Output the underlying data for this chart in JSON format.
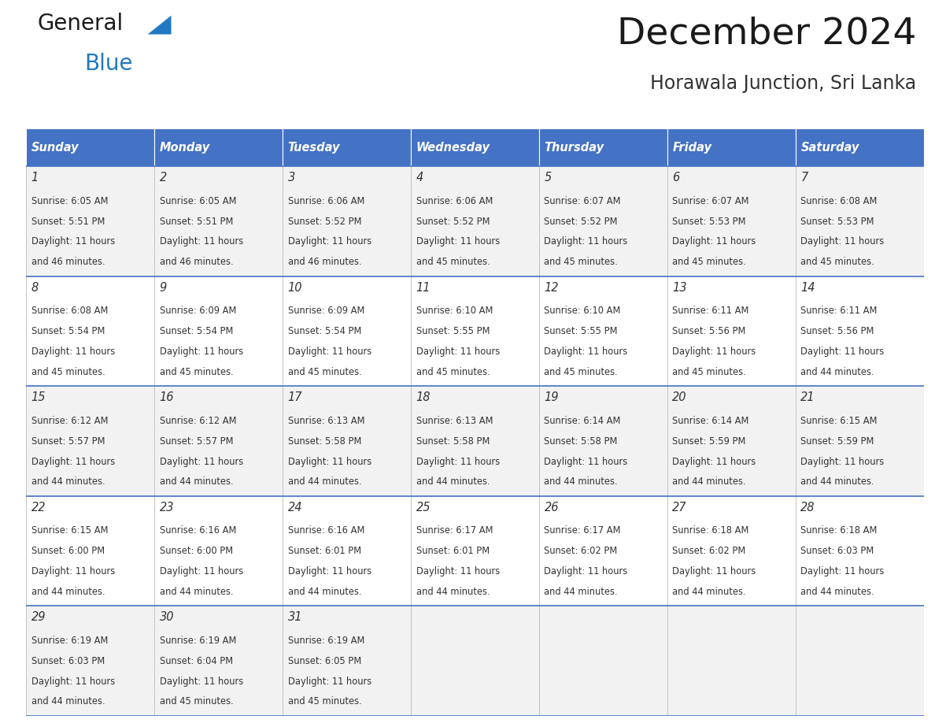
{
  "title": "December 2024",
  "subtitle": "Horawala Junction, Sri Lanka",
  "header_color": "#4472C4",
  "header_text_color": "#FFFFFF",
  "cell_bg_even": "#F2F2F2",
  "cell_bg_odd": "#FFFFFF",
  "grid_line_color": "#4472C4",
  "vert_line_color": "#AAAAAA",
  "day_headers": [
    "Sunday",
    "Monday",
    "Tuesday",
    "Wednesday",
    "Thursday",
    "Friday",
    "Saturday"
  ],
  "text_color": "#333333",
  "logo_color_general": "#1A1A1A",
  "logo_color_blue": "#2079C1",
  "logo_triangle_color": "#2079C1",
  "title_color": "#1A1A1A",
  "subtitle_color": "#333333",
  "days": [
    {
      "day": 1,
      "col": 0,
      "row": 0,
      "sunrise": "6:05 AM",
      "sunset": "5:51 PM",
      "daylight_mins": "46"
    },
    {
      "day": 2,
      "col": 1,
      "row": 0,
      "sunrise": "6:05 AM",
      "sunset": "5:51 PM",
      "daylight_mins": "46"
    },
    {
      "day": 3,
      "col": 2,
      "row": 0,
      "sunrise": "6:06 AM",
      "sunset": "5:52 PM",
      "daylight_mins": "46"
    },
    {
      "day": 4,
      "col": 3,
      "row": 0,
      "sunrise": "6:06 AM",
      "sunset": "5:52 PM",
      "daylight_mins": "45"
    },
    {
      "day": 5,
      "col": 4,
      "row": 0,
      "sunrise": "6:07 AM",
      "sunset": "5:52 PM",
      "daylight_mins": "45"
    },
    {
      "day": 6,
      "col": 5,
      "row": 0,
      "sunrise": "6:07 AM",
      "sunset": "5:53 PM",
      "daylight_mins": "45"
    },
    {
      "day": 7,
      "col": 6,
      "row": 0,
      "sunrise": "6:08 AM",
      "sunset": "5:53 PM",
      "daylight_mins": "45"
    },
    {
      "day": 8,
      "col": 0,
      "row": 1,
      "sunrise": "6:08 AM",
      "sunset": "5:54 PM",
      "daylight_mins": "45"
    },
    {
      "day": 9,
      "col": 1,
      "row": 1,
      "sunrise": "6:09 AM",
      "sunset": "5:54 PM",
      "daylight_mins": "45"
    },
    {
      "day": 10,
      "col": 2,
      "row": 1,
      "sunrise": "6:09 AM",
      "sunset": "5:54 PM",
      "daylight_mins": "45"
    },
    {
      "day": 11,
      "col": 3,
      "row": 1,
      "sunrise": "6:10 AM",
      "sunset": "5:55 PM",
      "daylight_mins": "45"
    },
    {
      "day": 12,
      "col": 4,
      "row": 1,
      "sunrise": "6:10 AM",
      "sunset": "5:55 PM",
      "daylight_mins": "45"
    },
    {
      "day": 13,
      "col": 5,
      "row": 1,
      "sunrise": "6:11 AM",
      "sunset": "5:56 PM",
      "daylight_mins": "45"
    },
    {
      "day": 14,
      "col": 6,
      "row": 1,
      "sunrise": "6:11 AM",
      "sunset": "5:56 PM",
      "daylight_mins": "44"
    },
    {
      "day": 15,
      "col": 0,
      "row": 2,
      "sunrise": "6:12 AM",
      "sunset": "5:57 PM",
      "daylight_mins": "44"
    },
    {
      "day": 16,
      "col": 1,
      "row": 2,
      "sunrise": "6:12 AM",
      "sunset": "5:57 PM",
      "daylight_mins": "44"
    },
    {
      "day": 17,
      "col": 2,
      "row": 2,
      "sunrise": "6:13 AM",
      "sunset": "5:58 PM",
      "daylight_mins": "44"
    },
    {
      "day": 18,
      "col": 3,
      "row": 2,
      "sunrise": "6:13 AM",
      "sunset": "5:58 PM",
      "daylight_mins": "44"
    },
    {
      "day": 19,
      "col": 4,
      "row": 2,
      "sunrise": "6:14 AM",
      "sunset": "5:58 PM",
      "daylight_mins": "44"
    },
    {
      "day": 20,
      "col": 5,
      "row": 2,
      "sunrise": "6:14 AM",
      "sunset": "5:59 PM",
      "daylight_mins": "44"
    },
    {
      "day": 21,
      "col": 6,
      "row": 2,
      "sunrise": "6:15 AM",
      "sunset": "5:59 PM",
      "daylight_mins": "44"
    },
    {
      "day": 22,
      "col": 0,
      "row": 3,
      "sunrise": "6:15 AM",
      "sunset": "6:00 PM",
      "daylight_mins": "44"
    },
    {
      "day": 23,
      "col": 1,
      "row": 3,
      "sunrise": "6:16 AM",
      "sunset": "6:00 PM",
      "daylight_mins": "44"
    },
    {
      "day": 24,
      "col": 2,
      "row": 3,
      "sunrise": "6:16 AM",
      "sunset": "6:01 PM",
      "daylight_mins": "44"
    },
    {
      "day": 25,
      "col": 3,
      "row": 3,
      "sunrise": "6:17 AM",
      "sunset": "6:01 PM",
      "daylight_mins": "44"
    },
    {
      "day": 26,
      "col": 4,
      "row": 3,
      "sunrise": "6:17 AM",
      "sunset": "6:02 PM",
      "daylight_mins": "44"
    },
    {
      "day": 27,
      "col": 5,
      "row": 3,
      "sunrise": "6:18 AM",
      "sunset": "6:02 PM",
      "daylight_mins": "44"
    },
    {
      "day": 28,
      "col": 6,
      "row": 3,
      "sunrise": "6:18 AM",
      "sunset": "6:03 PM",
      "daylight_mins": "44"
    },
    {
      "day": 29,
      "col": 0,
      "row": 4,
      "sunrise": "6:19 AM",
      "sunset": "6:03 PM",
      "daylight_mins": "44"
    },
    {
      "day": 30,
      "col": 1,
      "row": 4,
      "sunrise": "6:19 AM",
      "sunset": "6:04 PM",
      "daylight_mins": "45"
    },
    {
      "day": 31,
      "col": 2,
      "row": 4,
      "sunrise": "6:19 AM",
      "sunset": "6:05 PM",
      "daylight_mins": "45"
    }
  ]
}
